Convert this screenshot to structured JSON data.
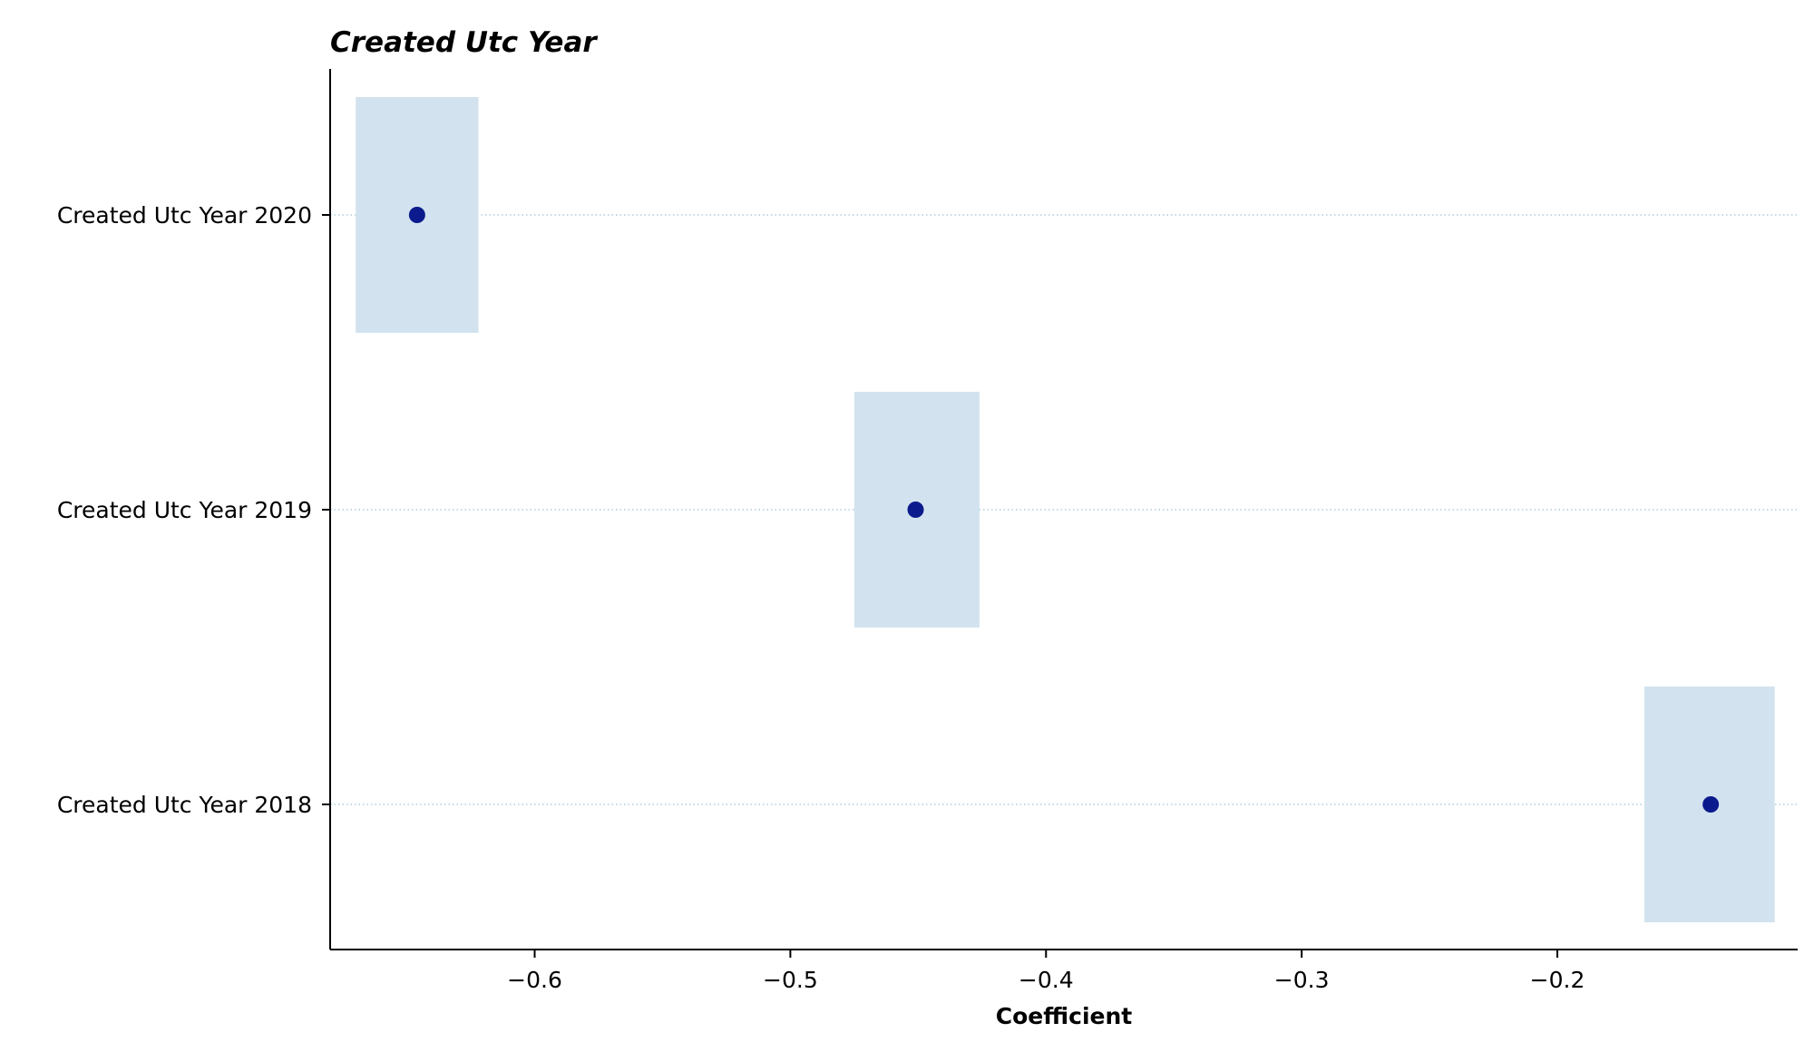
{
  "chart_data": {
    "type": "scatter",
    "title": "Created Utc Year",
    "xlabel": "Coefficient",
    "ylabel": "",
    "xlim": [
      -0.68,
      -0.106
    ],
    "x_ticks": [
      -0.6,
      -0.5,
      -0.4,
      -0.3,
      -0.2
    ],
    "x_tick_labels": [
      "−0.6",
      "−0.5",
      "−0.4",
      "−0.3",
      "−0.2"
    ],
    "categories": [
      "Created Utc Year 2020",
      "Created Utc Year 2019",
      "Created Utc Year 2018"
    ],
    "points": [
      {
        "label": "Created Utc Year 2020",
        "coef": -0.646,
        "ci_low": -0.67,
        "ci_high": -0.622
      },
      {
        "label": "Created Utc Year 2019",
        "coef": -0.451,
        "ci_low": -0.475,
        "ci_high": -0.426
      },
      {
        "label": "Created Utc Year 2018",
        "coef": -0.14,
        "ci_low": -0.166,
        "ci_high": -0.115
      }
    ],
    "grid": "horizontal dotted at each category",
    "legend": "none",
    "colors": {
      "point": "#0b1a8c",
      "ci_band": "#d2e3ef",
      "gridline": "#9fc4d8",
      "axis": "#000000"
    }
  }
}
